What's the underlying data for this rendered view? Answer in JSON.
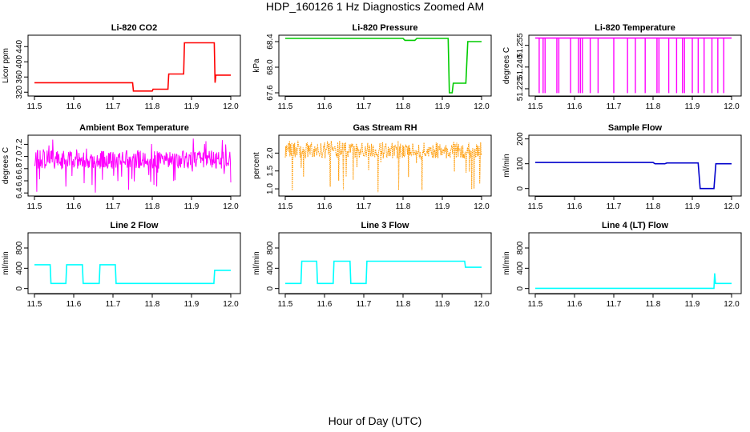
{
  "figure": {
    "title": "HDP_160126  1 Hz Diagnostics Zoomed AM",
    "xlabel": "Hour of Day (UTC)"
  },
  "chart_data": [
    {
      "type": "line",
      "title": "Li-820 CO2",
      "ylabel": "Licor ppm",
      "color": "#ff0000",
      "xlim": [
        11.5,
        12.0
      ],
      "ylim": [
        310,
        470
      ],
      "xticks": [
        "11.5",
        "11.6",
        "11.7",
        "11.8",
        "11.9",
        "12.0"
      ],
      "yticks": [
        "320",
        "360",
        "400",
        "440"
      ],
      "series": [
        {
          "x": [
            11.5,
            11.75,
            11.752,
            11.8,
            11.802,
            11.84,
            11.842,
            11.88,
            11.882,
            11.958,
            11.96,
            11.962,
            12.0
          ],
          "y": [
            345,
            345,
            323,
            323,
            328,
            328,
            368,
            368,
            450,
            450,
            345,
            365,
            365
          ]
        }
      ]
    },
    {
      "type": "line",
      "title": "Li-820 Pressure",
      "ylabel": "kPa",
      "color": "#00cc00",
      "xlim": [
        11.5,
        12.0
      ],
      "ylim": [
        67.55,
        68.5
      ],
      "xticks": [
        "11.5",
        "11.6",
        "11.7",
        "11.8",
        "11.9",
        "12.0"
      ],
      "yticks": [
        "67.6",
        "68.0",
        "68.4"
      ],
      "series": [
        {
          "x": [
            11.5,
            11.8,
            11.805,
            11.83,
            11.835,
            11.915,
            11.918,
            11.925,
            11.928,
            11.955,
            11.96,
            11.965,
            12.0
          ],
          "y": [
            68.45,
            68.45,
            68.42,
            68.42,
            68.45,
            68.45,
            67.6,
            67.6,
            67.75,
            67.75,
            67.75,
            68.4,
            68.4
          ]
        }
      ]
    },
    {
      "type": "line",
      "title": "Li-820 Temperature",
      "ylabel": "degrees C",
      "color": "#ff00ff",
      "xlim": [
        11.5,
        12.0
      ],
      "ylim": [
        51.22,
        51.262
      ],
      "xticks": [
        "11.5",
        "11.6",
        "11.7",
        "11.8",
        "11.9",
        "12.0"
      ],
      "yticks": [
        "51.225",
        "51.240",
        "51.255"
      ],
      "series": [
        {
          "x": [
            11.5,
            12.0
          ],
          "y": [
            51.26,
            51.26
          ]
        }
      ],
      "spikes": {
        "x": [
          11.51,
          11.52,
          11.525,
          11.555,
          11.56,
          11.59,
          11.61,
          11.615,
          11.62,
          11.64,
          11.66,
          11.7,
          11.735,
          11.755,
          11.78,
          11.81,
          11.815,
          11.84,
          11.86,
          11.875,
          11.88,
          11.9,
          11.915,
          11.93,
          11.95,
          11.965,
          11.98
        ],
        "to": 51.222
      }
    },
    {
      "type": "line",
      "title": "Ambient Box Temperature",
      "ylabel": "degrees C",
      "color": "#ff00ff",
      "xlim": [
        11.5,
        12.0
      ],
      "ylim": [
        6.35,
        7.35
      ],
      "xticks": [
        "11.5",
        "11.6",
        "11.7",
        "11.8",
        "11.9",
        "12.0"
      ],
      "yticks": [
        "6.4",
        "6.6",
        "6.8",
        "7.0",
        "7.2"
      ],
      "series": [
        {
          "x": [
            11.5,
            12.0
          ],
          "y": [
            6.95,
            6.95
          ]
        }
      ],
      "noise": {
        "low": 6.8,
        "high": 7.1,
        "min": 6.4,
        "max": 7.3
      }
    },
    {
      "type": "line",
      "title": "Gas Stream RH",
      "ylabel": "percent",
      "color": "#ff9900",
      "xlim": [
        11.5,
        12.0
      ],
      "ylim": [
        0.8,
        2.5
      ],
      "xticks": [
        "11.5",
        "11.6",
        "11.7",
        "11.8",
        "11.9",
        "12.0"
      ],
      "yticks": [
        "1.0",
        "1.5",
        "2.0"
      ],
      "series": [
        {
          "x": [
            11.5,
            12.0
          ],
          "y": [
            2.05,
            2.05
          ]
        }
      ],
      "noise": {
        "low": 1.85,
        "high": 2.3,
        "min": 0.85,
        "max": 2.35
      }
    },
    {
      "type": "line",
      "title": "Sample Flow",
      "ylabel": "ml/min",
      "color": "#0000cc",
      "xlim": [
        11.5,
        12.0
      ],
      "ylim": [
        -30,
        215
      ],
      "xticks": [
        "11.5",
        "11.6",
        "11.7",
        "11.8",
        "11.9",
        "12.0"
      ],
      "yticks": [
        "0",
        "100",
        "200"
      ],
      "series": [
        {
          "x": [
            11.5,
            11.8,
            11.805,
            11.83,
            11.835,
            11.915,
            11.92,
            11.955,
            11.96,
            12.0
          ],
          "y": [
            105,
            105,
            100,
            100,
            103,
            103,
            0,
            0,
            100,
            100
          ]
        }
      ]
    },
    {
      "type": "line",
      "title": "Line 2 Flow",
      "ylabel": "ml/min",
      "color": "#00ffff",
      "xlim": [
        11.5,
        12.0
      ],
      "ylim": [
        -100,
        1100
      ],
      "xticks": [
        "11.5",
        "11.6",
        "11.7",
        "11.8",
        "11.9",
        "12.0"
      ],
      "yticks": [
        "0",
        "400",
        "800"
      ],
      "series": [
        {
          "x": [
            11.5,
            11.54,
            11.542,
            11.58,
            11.582,
            11.622,
            11.624,
            11.665,
            11.667,
            11.706,
            11.708,
            11.957,
            11.959,
            12.0
          ],
          "y": [
            470,
            470,
            100,
            100,
            470,
            470,
            100,
            100,
            470,
            470,
            100,
            100,
            360,
            360
          ]
        }
      ]
    },
    {
      "type": "line",
      "title": "Line 3 Flow",
      "ylabel": "ml/min",
      "color": "#00ffff",
      "xlim": [
        11.5,
        12.0
      ],
      "ylim": [
        -100,
        1100
      ],
      "xticks": [
        "11.5",
        "11.6",
        "11.7",
        "11.8",
        "11.9",
        "12.0"
      ],
      "yticks": [
        "0",
        "400",
        "800"
      ],
      "series": [
        {
          "x": [
            11.5,
            11.54,
            11.542,
            11.58,
            11.582,
            11.622,
            11.624,
            11.665,
            11.667,
            11.706,
            11.708,
            11.957,
            11.959,
            12.0
          ],
          "y": [
            100,
            100,
            540,
            540,
            100,
            100,
            540,
            540,
            100,
            100,
            540,
            540,
            420,
            420
          ]
        }
      ]
    },
    {
      "type": "line",
      "title": "Line 4 (LT) Flow",
      "ylabel": "ml/min",
      "color": "#00ffff",
      "xlim": [
        11.5,
        12.0
      ],
      "ylim": [
        -100,
        1100
      ],
      "xticks": [
        "11.5",
        "11.6",
        "11.7",
        "11.8",
        "11.9",
        "12.0"
      ],
      "yticks": [
        "0",
        "400",
        "800"
      ],
      "series": [
        {
          "x": [
            11.5,
            11.955,
            11.957,
            11.959,
            11.961,
            12.0
          ],
          "y": [
            5,
            5,
            300,
            100,
            100,
            100
          ]
        }
      ]
    }
  ]
}
